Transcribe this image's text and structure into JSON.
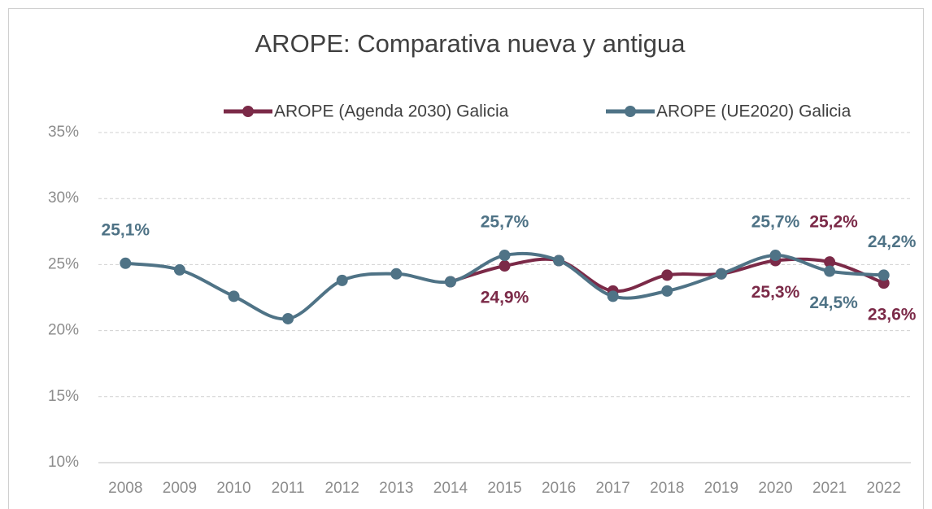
{
  "chart_data": {
    "type": "line",
    "title": "AROPE: Comparativa nueva y antigua",
    "categories": [
      "2008",
      "2009",
      "2010",
      "2011",
      "2012",
      "2013",
      "2014",
      "2015",
      "2016",
      "2017",
      "2018",
      "2019",
      "2020",
      "2021",
      "2022"
    ],
    "series": [
      {
        "name": "AROPE (Agenda 2030) Galicia",
        "color": "#7b2a48",
        "values": [
          null,
          null,
          null,
          null,
          null,
          null,
          23.7,
          24.9,
          25.3,
          23.0,
          24.2,
          24.3,
          25.3,
          25.2,
          23.6
        ],
        "value_labels": [
          null,
          null,
          null,
          null,
          null,
          null,
          null,
          "24,9%",
          null,
          null,
          null,
          null,
          "25,3%",
          "25,2%",
          "23,6%"
        ]
      },
      {
        "name": "AROPE (UE2020) Galicia",
        "color": "#4f7386",
        "values": [
          25.1,
          24.6,
          22.6,
          20.9,
          23.8,
          24.3,
          23.7,
          25.7,
          25.3,
          22.6,
          23.0,
          24.3,
          25.7,
          24.5,
          24.2
        ],
        "value_labels": [
          "25,1%",
          null,
          null,
          null,
          null,
          null,
          null,
          "25,7%",
          null,
          null,
          null,
          null,
          "25,7%",
          "24,5%",
          "24,2%"
        ]
      }
    ],
    "ylim": [
      10,
      35
    ],
    "yticks": [
      {
        "value": 10,
        "label": "10%"
      },
      {
        "value": 15,
        "label": "15%"
      },
      {
        "value": 20,
        "label": "20%"
      },
      {
        "value": 25,
        "label": "25%"
      },
      {
        "value": 30,
        "label": "30%"
      },
      {
        "value": 35,
        "label": "35%"
      }
    ],
    "grid": true,
    "legend": "top"
  }
}
